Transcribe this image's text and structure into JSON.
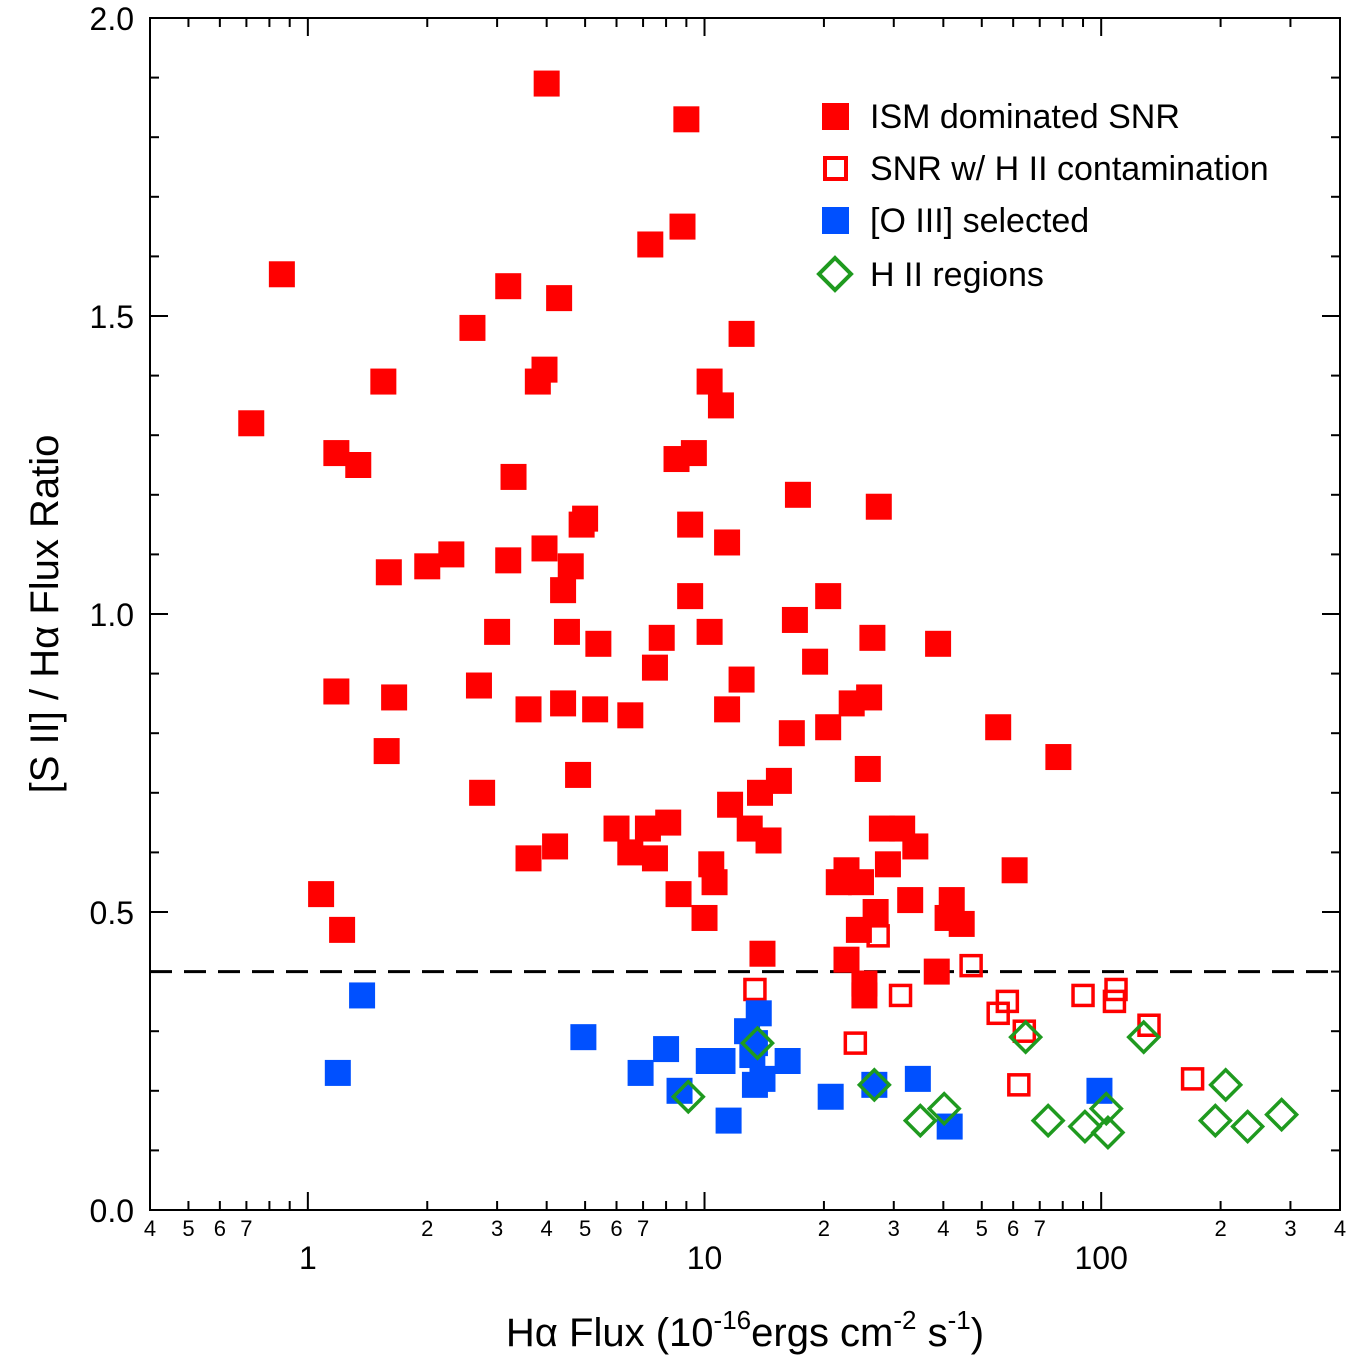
{
  "chart_data": {
    "type": "scatter",
    "x_scale": "log",
    "xlim": [
      0.4,
      400
    ],
    "ylim": [
      0.0,
      2.0
    ],
    "ylabel": "[S II] / Hα Flux Ratio",
    "xlabel": {
      "main": "Hα Flux (10",
      "exp1": "-16",
      "mid": "ergs cm",
      "exp2": "-2",
      "mid2": " s",
      "exp3": "-1",
      "end": ")"
    },
    "threshold": 0.4,
    "y_ticks": [
      {
        "value": 0.0,
        "label": "0.0"
      },
      {
        "value": 0.5,
        "label": "0.5"
      },
      {
        "value": 1.0,
        "label": "1.0"
      },
      {
        "value": 1.5,
        "label": "1.5"
      },
      {
        "value": 2.0,
        "label": "2.0"
      }
    ],
    "x_major_ticks": [
      {
        "value": 1,
        "label": "1"
      },
      {
        "value": 10,
        "label": "10"
      },
      {
        "value": 100,
        "label": "100"
      }
    ],
    "x_minor_labeled": [
      {
        "value": 0.4,
        "label": "4"
      },
      {
        "value": 0.5,
        "label": "5"
      },
      {
        "value": 0.6,
        "label": "6"
      },
      {
        "value": 0.7,
        "label": "7"
      },
      {
        "value": 2,
        "label": "2"
      },
      {
        "value": 3,
        "label": "3"
      },
      {
        "value": 4,
        "label": "4"
      },
      {
        "value": 5,
        "label": "5"
      },
      {
        "value": 6,
        "label": "6"
      },
      {
        "value": 7,
        "label": "7"
      },
      {
        "value": 20,
        "label": "2"
      },
      {
        "value": 30,
        "label": "3"
      },
      {
        "value": 40,
        "label": "4"
      },
      {
        "value": 50,
        "label": "5"
      },
      {
        "value": 60,
        "label": "6"
      },
      {
        "value": 70,
        "label": "7"
      },
      {
        "value": 200,
        "label": "2"
      },
      {
        "value": 300,
        "label": "3"
      },
      {
        "value": 400,
        "label": "4"
      }
    ],
    "legend": [
      {
        "name": "ISM dominated SNR",
        "marker": "square-filled",
        "color": "#ff0000"
      },
      {
        "name": "SNR w/ H II contamination",
        "marker": "square-open",
        "color": "#ff0000"
      },
      {
        "name": "[O III] selected",
        "marker": "square-filled",
        "color": "#0050ff"
      },
      {
        "name": "H II regions",
        "marker": "diamond-open",
        "color": "#1f9a1f"
      }
    ],
    "series": [
      {
        "name": "ISM dominated SNR",
        "points": [
          [
            0.72,
            1.32
          ],
          [
            0.86,
            1.57
          ],
          [
            1.08,
            0.53
          ],
          [
            1.18,
            1.27
          ],
          [
            1.18,
            0.87
          ],
          [
            1.22,
            0.47
          ],
          [
            1.34,
            1.25
          ],
          [
            1.55,
            1.39
          ],
          [
            1.58,
            0.77
          ],
          [
            1.6,
            1.07
          ],
          [
            1.65,
            0.86
          ],
          [
            2.0,
            1.08
          ],
          [
            2.3,
            1.1
          ],
          [
            2.6,
            1.48
          ],
          [
            2.7,
            0.88
          ],
          [
            2.75,
            0.7
          ],
          [
            3.0,
            0.97
          ],
          [
            3.2,
            1.55
          ],
          [
            3.2,
            1.09
          ],
          [
            3.3,
            1.23
          ],
          [
            3.6,
            0.84
          ],
          [
            3.6,
            0.59
          ],
          [
            3.8,
            1.39
          ],
          [
            3.95,
            1.41
          ],
          [
            3.95,
            1.11
          ],
          [
            4.0,
            1.89
          ],
          [
            4.2,
            0.61
          ],
          [
            4.3,
            1.53
          ],
          [
            4.4,
            1.04
          ],
          [
            4.4,
            0.85
          ],
          [
            4.5,
            0.97
          ],
          [
            4.6,
            1.08
          ],
          [
            4.8,
            0.73
          ],
          [
            4.9,
            1.15
          ],
          [
            5.0,
            1.16
          ],
          [
            5.3,
            0.84
          ],
          [
            5.4,
            0.95
          ],
          [
            6.0,
            0.64
          ],
          [
            6.5,
            0.6
          ],
          [
            6.5,
            0.83
          ],
          [
            7.2,
            0.64
          ],
          [
            7.3,
            1.62
          ],
          [
            7.5,
            0.59
          ],
          [
            7.5,
            0.91
          ],
          [
            7.8,
            0.96
          ],
          [
            8.1,
            0.65
          ],
          [
            8.5,
            1.26
          ],
          [
            8.6,
            0.53
          ],
          [
            8.8,
            1.65
          ],
          [
            9.0,
            1.83
          ],
          [
            9.2,
            1.03
          ],
          [
            9.2,
            1.15
          ],
          [
            9.4,
            1.27
          ],
          [
            10.0,
            0.49
          ],
          [
            10.3,
            0.97
          ],
          [
            10.3,
            1.39
          ],
          [
            10.4,
            0.58
          ],
          [
            10.6,
            0.55
          ],
          [
            11.0,
            1.35
          ],
          [
            11.4,
            1.12
          ],
          [
            11.4,
            0.84
          ],
          [
            11.6,
            0.68
          ],
          [
            12.4,
            0.89
          ],
          [
            12.4,
            1.47
          ],
          [
            13.0,
            0.64
          ],
          [
            13.8,
            0.7
          ],
          [
            14.0,
            0.43
          ],
          [
            14.5,
            0.62
          ],
          [
            15.4,
            0.72
          ],
          [
            16.6,
            0.8
          ],
          [
            16.9,
            0.99
          ],
          [
            17.2,
            1.2
          ],
          [
            19.0,
            0.92
          ],
          [
            20.5,
            1.03
          ],
          [
            20.5,
            0.81
          ],
          [
            21.8,
            0.55
          ],
          [
            22.8,
            0.42
          ],
          [
            22.8,
            0.57
          ],
          [
            23.5,
            0.85
          ],
          [
            24.5,
            0.47
          ],
          [
            24.8,
            0.55
          ],
          [
            25.3,
            0.38
          ],
          [
            25.3,
            0.36
          ],
          [
            25.8,
            0.74
          ],
          [
            26.0,
            0.86
          ],
          [
            26.5,
            0.96
          ],
          [
            27.0,
            0.5
          ],
          [
            27.5,
            1.18
          ],
          [
            28.0,
            0.64
          ],
          [
            29.0,
            0.58
          ],
          [
            31.5,
            0.64
          ],
          [
            33.0,
            0.52
          ],
          [
            34.0,
            0.61
          ],
          [
            38.5,
            0.4
          ],
          [
            38.8,
            0.95
          ],
          [
            41.0,
            0.49
          ],
          [
            42.0,
            0.52
          ],
          [
            44.5,
            0.48
          ],
          [
            55.0,
            0.81
          ],
          [
            60.5,
            0.57
          ],
          [
            78.0,
            0.76
          ]
        ]
      },
      {
        "name": "SNR w/ H II contamination",
        "points": [
          [
            13.4,
            0.37
          ],
          [
            24.0,
            0.28
          ],
          [
            27.4,
            0.46
          ],
          [
            31.2,
            0.36
          ],
          [
            47.0,
            0.41
          ],
          [
            55.0,
            0.33
          ],
          [
            58.0,
            0.35
          ],
          [
            62.0,
            0.21
          ],
          [
            64.0,
            0.3
          ],
          [
            90.0,
            0.36
          ],
          [
            108.0,
            0.35
          ],
          [
            109.0,
            0.37
          ],
          [
            132.0,
            0.31
          ],
          [
            170.0,
            0.22
          ]
        ]
      },
      {
        "name": "[O III] selected",
        "points": [
          [
            1.19,
            0.23
          ],
          [
            1.37,
            0.36
          ],
          [
            4.95,
            0.29
          ],
          [
            6.9,
            0.23
          ],
          [
            8.0,
            0.27
          ],
          [
            8.65,
            0.2
          ],
          [
            10.25,
            0.25
          ],
          [
            11.1,
            0.25
          ],
          [
            11.5,
            0.15
          ],
          [
            12.8,
            0.3
          ],
          [
            13.2,
            0.26
          ],
          [
            13.4,
            0.21
          ],
          [
            13.4,
            0.28
          ],
          [
            13.7,
            0.33
          ],
          [
            14.0,
            0.22
          ],
          [
            16.2,
            0.25
          ],
          [
            20.8,
            0.19
          ],
          [
            26.8,
            0.21
          ],
          [
            34.5,
            0.22
          ],
          [
            41.5,
            0.14
          ],
          [
            99.0,
            0.2
          ]
        ]
      },
      {
        "name": "H II regions",
        "points": [
          [
            9.1,
            0.19
          ],
          [
            13.6,
            0.28
          ],
          [
            26.8,
            0.21
          ],
          [
            35.0,
            0.15
          ],
          [
            40.2,
            0.17
          ],
          [
            64.5,
            0.29
          ],
          [
            73.5,
            0.15
          ],
          [
            91.0,
            0.14
          ],
          [
            103.0,
            0.17
          ],
          [
            104.0,
            0.13
          ],
          [
            128.0,
            0.29
          ],
          [
            194.0,
            0.15
          ],
          [
            206.0,
            0.21
          ],
          [
            234.0,
            0.14
          ],
          [
            285.0,
            0.16
          ]
        ]
      }
    ]
  }
}
